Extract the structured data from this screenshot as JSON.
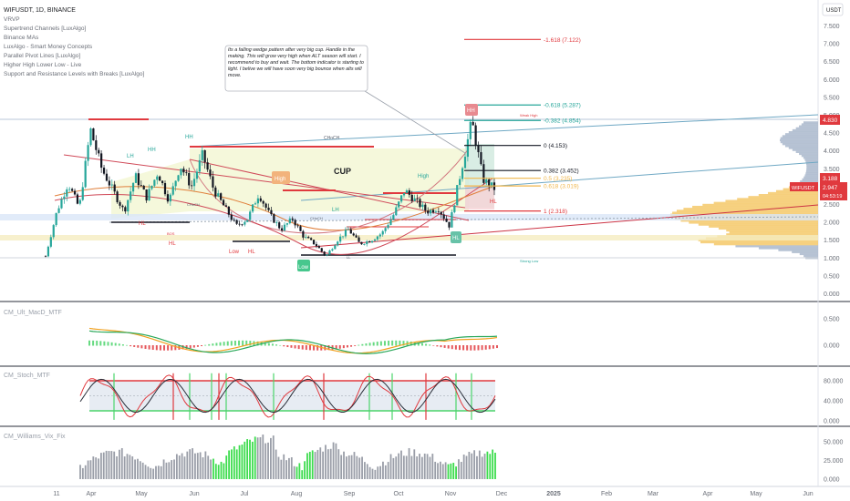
{
  "header": {
    "symbol_title": "WIFUSDT, 1D, BINANCE",
    "currency": "USDT",
    "indicators": [
      "VRVP",
      "Supertrend Channels [LuxAlgo]",
      "Binance MAs",
      "LuxAlgo - Smart Money Concepts",
      "Parallel Pivot Lines [LuxAlgo]",
      "Higher High Lower Low - Live",
      "Support and Resistance Levels with Breaks [LuxAlgo]"
    ]
  },
  "annotation": {
    "note": "Its a falling wedge pattern after very big cup. Handle in the making. This will grow very high when ALT season will start. I recommend to buy and wait. The bottom indicator is starting to light. I belive we will have soon very big bounce when alts will move."
  },
  "price_labels": {
    "current_ticker": "WIFUSDT",
    "current_price": "2.947",
    "countdown": "04:53:19",
    "high_tag": "4.830",
    "level_tag": "3.188"
  },
  "pattern_labels": {
    "cup": "CUP",
    "high_1": "High",
    "high_2": "High",
    "low_1": "Low",
    "hl_1": "HL",
    "lh": "LH",
    "hh_1": "HH",
    "hh_2": "HH",
    "hh_top": "HH",
    "hl_2": "HL",
    "hl_3": "HL",
    "choch_1": "CHoCH",
    "choch_2": "CHoCH",
    "choch_3": "CHoCH",
    "bos": "BOS",
    "weak_high": "Weak High",
    "strong_low": "Strong Low",
    "low_tag": "Low",
    "ll": "LL",
    "hl_4": "HL",
    "lh_2": "LH",
    "hl_5": "HL"
  },
  "fib_levels": [
    {
      "label": "-1.618 (7.122)",
      "price": 7.122,
      "color": "#e0393e"
    },
    {
      "label": "-0.618 (5.287)",
      "price": 5.287,
      "color": "#26a69a"
    },
    {
      "label": "-0.382 (4.854)",
      "price": 4.854,
      "color": "#26a69a"
    },
    {
      "label": "0 (4.153)",
      "price": 4.153,
      "color": "#131722"
    },
    {
      "label": "0.382 (3.452)",
      "price": 3.452,
      "color": "#131722"
    },
    {
      "label": "0.5 (3.235)",
      "price": 3.235,
      "color": "#f0b64a"
    },
    {
      "label": "0.618 (3.019)",
      "price": 3.019,
      "color": "#f0b64a"
    },
    {
      "label": "1 (2.318)",
      "price": 2.318,
      "color": "#e0393e"
    }
  ],
  "chart_data": [
    {
      "type": "line",
      "title": "WIFUSDT, 1D, BINANCE",
      "ylabel": "USDT",
      "x_ticks": [
        "11",
        "Apr",
        "May",
        "Jun",
        "Jul",
        "Aug",
        "Sep",
        "Oct",
        "Nov",
        "Dec",
        "2025",
        "Feb",
        "Mar",
        "Apr",
        "May",
        "Jun"
      ],
      "y_ticks": [
        "7.500",
        "7.000",
        "6.500",
        "6.000",
        "5.500",
        "5.000",
        "4.500",
        "4.000",
        "3.500",
        "3.000",
        "2.500",
        "2.000",
        "1.500",
        "1.000",
        "0.500",
        "0.000"
      ],
      "ylim": [
        0,
        7.5
      ],
      "series": [
        {
          "values": [
            1.05,
            2.3,
            3.1,
            2.4,
            4.6,
            3.5,
            2.9,
            2.3,
            3.3,
            2.7,
            3.4,
            2.6,
            3.6,
            3.0,
            3.9,
            2.9,
            2.4,
            1.9,
            2.1,
            2.8,
            2.2,
            1.8,
            2.1,
            1.6,
            1.4,
            1.05,
            1.5,
            1.8,
            1.4,
            1.5,
            1.7,
            2.2,
            2.9,
            2.6,
            2.3,
            2.4,
            1.9,
            3.4,
            4.83,
            3.2,
            2.95
          ]
        }
      ]
    },
    {
      "type": "line",
      "title": "CM_Ult_MacD_MTF",
      "y_ticks": [
        "0.500",
        "0.000"
      ],
      "ylim": [
        -0.35,
        0.75
      ]
    },
    {
      "type": "line",
      "title": "CM_Stoch_MTF",
      "y_ticks": [
        "80.000",
        "40.000",
        "0.000"
      ],
      "ylim": [
        0,
        100
      ]
    },
    {
      "type": "bar",
      "title": "CM_Williams_Vix_Fix",
      "y_ticks": [
        "50.000",
        "25.000",
        "0.000"
      ],
      "ylim": [
        0,
        60
      ]
    }
  ]
}
